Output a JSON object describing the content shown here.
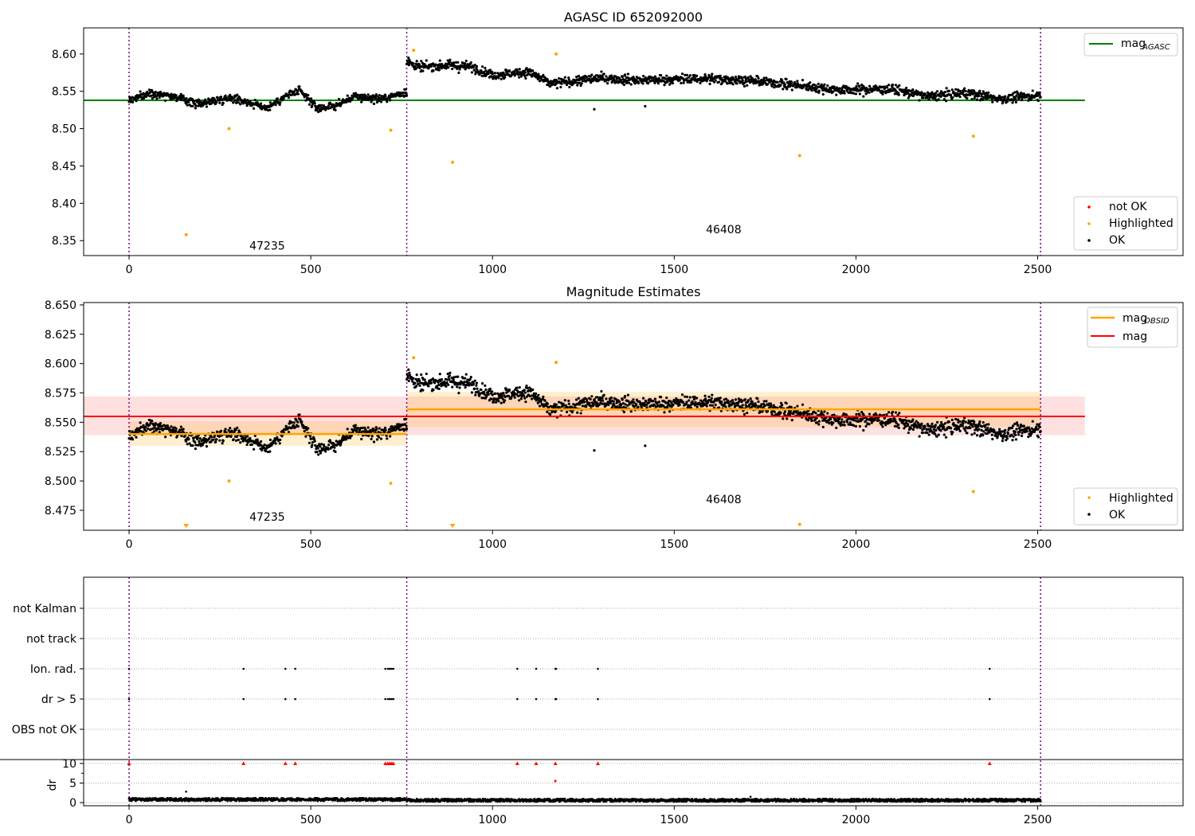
{
  "figure": {
    "panel1_title": "AGASC ID 652092000",
    "panel2_title": "Magnitude Estimates"
  },
  "colors": {
    "ok": "#000000",
    "highlighted": "#ffa500",
    "not_ok": "#ff0000",
    "mag_agasc": "#008000",
    "mag_obsid": "#ffa500",
    "mag": "#ff0000",
    "obs_boundary": "#800080"
  },
  "chart_data": [
    {
      "type": "scatter",
      "title": "AGASC ID 652092000",
      "xlim": [
        -125,
        2900
      ],
      "ylim": [
        8.33,
        8.635
      ],
      "xticks": [
        0,
        500,
        1000,
        1500,
        2000,
        2500
      ],
      "yticks": [
        8.35,
        8.4,
        8.45,
        8.5,
        8.55,
        8.6
      ],
      "ytick_labels": [
        "8.35",
        "8.40",
        "8.45",
        "8.50",
        "8.55",
        "8.60"
      ],
      "obs_boundaries": [
        0,
        764,
        2508
      ],
      "obs_labels": [
        {
          "text": "47235",
          "x": 380,
          "y": 8.338
        },
        {
          "text": "46408",
          "x": 1636,
          "y": 8.36
        }
      ],
      "mag_agasc": {
        "value": 8.538,
        "x_range": [
          -125,
          2630
        ]
      },
      "segments": [
        {
          "x0": 0,
          "x1": 764,
          "levels": [
            [
              0,
              8.538
            ],
            [
              60,
              8.548
            ],
            [
              110,
              8.545
            ],
            [
              190,
              8.533
            ],
            [
              280,
              8.542
            ],
            [
              330,
              8.535
            ],
            [
              380,
              8.528
            ],
            [
              440,
              8.546
            ],
            [
              470,
              8.55
            ],
            [
              520,
              8.527
            ],
            [
              570,
              8.531
            ],
            [
              620,
              8.543
            ],
            [
              700,
              8.54
            ],
            [
              764,
              8.55
            ]
          ],
          "noise": 0.007
        },
        {
          "x0": 764,
          "x1": 2508,
          "levels": [
            [
              764,
              8.59
            ],
            [
              800,
              8.582
            ],
            [
              880,
              8.585
            ],
            [
              940,
              8.583
            ],
            [
              1000,
              8.572
            ],
            [
              1100,
              8.576
            ],
            [
              1160,
              8.56
            ],
            [
              1300,
              8.568
            ],
            [
              1400,
              8.565
            ],
            [
              1600,
              8.567
            ],
            [
              1700,
              8.565
            ],
            [
              1800,
              8.56
            ],
            [
              1950,
              8.552
            ],
            [
              2100,
              8.553
            ],
            [
              2200,
              8.543
            ],
            [
              2300,
              8.548
            ],
            [
              2400,
              8.54
            ],
            [
              2508,
              8.545
            ]
          ],
          "noise": 0.008
        }
      ],
      "highlighted": [
        {
          "x": 157,
          "y": 8.358
        },
        {
          "x": 275,
          "y": 8.5
        },
        {
          "x": 720,
          "y": 8.498
        },
        {
          "x": 783,
          "y": 8.605
        },
        {
          "x": 890,
          "y": 8.455
        },
        {
          "x": 1175,
          "y": 8.6
        },
        {
          "x": 1845,
          "y": 8.464
        },
        {
          "x": 2323,
          "y": 8.49
        }
      ],
      "outliers": [
        {
          "x": 1280,
          "y": 8.526
        },
        {
          "x": 1420,
          "y": 8.53
        }
      ],
      "legend_top": {
        "position": "upper right",
        "entries": [
          {
            "label": "mag",
            "sub": "AGASC",
            "color": "#008000"
          }
        ]
      },
      "legend_bottom": {
        "position": "lower right",
        "entries": [
          {
            "label": "not OK",
            "color": "#ff0000"
          },
          {
            "label": "Highlighted",
            "color": "#ffa500"
          },
          {
            "label": "OK",
            "color": "#000000"
          }
        ]
      }
    },
    {
      "type": "scatter",
      "title": "Magnitude Estimates",
      "xlim": [
        -125,
        2900
      ],
      "ylim": [
        8.458,
        8.652
      ],
      "xticks": [
        0,
        500,
        1000,
        1500,
        2000,
        2500
      ],
      "yticks": [
        8.475,
        8.5,
        8.525,
        8.55,
        8.575,
        8.6,
        8.625,
        8.65
      ],
      "ytick_labels": [
        "8.475",
        "8.500",
        "8.525",
        "8.550",
        "8.575",
        "8.600",
        "8.625",
        "8.650"
      ],
      "obs_boundaries": [
        0,
        764,
        2508
      ],
      "obs_labels": [
        {
          "text": "47235",
          "x": 380,
          "y": 8.466
        },
        {
          "text": "46408",
          "x": 1636,
          "y": 8.481
        }
      ],
      "mag": {
        "value": 8.555,
        "band": [
          8.539,
          8.572
        ],
        "x_range": [
          -125,
          2630
        ]
      },
      "mag_obsid": [
        {
          "x0": 0,
          "x1": 764,
          "value": 8.54,
          "band": [
            8.53,
            8.551
          ]
        },
        {
          "x0": 764,
          "x1": 2508,
          "value": 8.561,
          "band": [
            8.546,
            8.576
          ]
        }
      ],
      "highlighted": [
        {
          "x": 275,
          "y": 8.5
        },
        {
          "x": 720,
          "y": 8.498
        },
        {
          "x": 783,
          "y": 8.605
        },
        {
          "x": 1175,
          "y": 8.601
        },
        {
          "x": 1845,
          "y": 8.463
        },
        {
          "x": 2323,
          "y": 8.491
        }
      ],
      "offscale_markers": [
        {
          "x": 157
        },
        {
          "x": 890
        }
      ],
      "outliers": [
        {
          "x": 1280,
          "y": 8.526
        },
        {
          "x": 1420,
          "y": 8.53
        }
      ],
      "legend_top": {
        "position": "upper right",
        "entries": [
          {
            "label": "mag",
            "sub": "OBSID",
            "color": "#ffa500"
          },
          {
            "label": "mag",
            "sub": "",
            "color": "#ff0000"
          }
        ]
      },
      "legend_bottom": {
        "position": "lower right",
        "entries": [
          {
            "label": "Highlighted",
            "color": "#ffa500"
          },
          {
            "label": "OK",
            "color": "#000000"
          }
        ]
      }
    },
    {
      "type": "scatter",
      "title": "",
      "xlim": [
        -125,
        2900
      ],
      "xticks": [
        0,
        500,
        1000,
        1500,
        2000,
        2500
      ],
      "obs_boundaries": [
        0,
        764,
        2508
      ],
      "flag_labels": [
        "not Kalman",
        "not track",
        "Ion. rad.",
        "dr > 5",
        "OBS not OK"
      ],
      "flag_points": {
        "Ion. rad.": [
          0,
          315,
          430,
          457,
          705,
          712,
          717,
          722,
          727,
          1068,
          1120,
          1173,
          1175,
          1290,
          2368
        ],
        "dr > 5": [
          0,
          315,
          430,
          457,
          705,
          712,
          717,
          722,
          727,
          1068,
          1120,
          1173,
          1175,
          1290,
          2368
        ]
      },
      "dr": {
        "ylabel": "dr",
        "ylim": [
          -0.8,
          11.0
        ],
        "yticks": [
          0,
          5,
          10
        ],
        "clip_value": 10,
        "clipped_x": [
          0,
          315,
          430,
          457,
          705,
          712,
          717,
          722,
          727,
          1068,
          1120,
          1173,
          1290,
          2368
        ],
        "highlight_red": [
          {
            "x": 1173,
            "y": 5.5
          }
        ],
        "extra_points": [
          {
            "x": 157,
            "y": 2.8
          },
          {
            "x": 1710,
            "y": 1.5
          }
        ],
        "baseline": 0.7
      }
    }
  ]
}
